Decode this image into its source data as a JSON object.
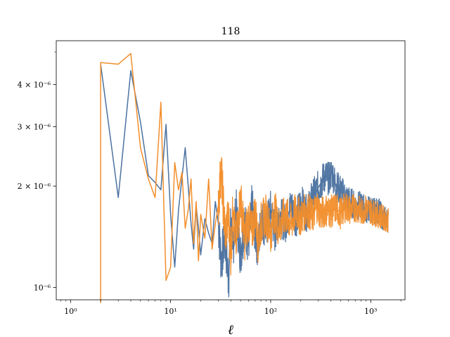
{
  "chart_data": {
    "type": "line",
    "title": "118",
    "xlabel": "ℓ",
    "ylabel": "",
    "xscale": "log",
    "yscale": "log",
    "xlim": [
      0.72,
      2200
    ],
    "ylim": [
      9.2e-07,
      5.4e-06
    ],
    "grid": false,
    "legend": "none",
    "x_ticks": [
      {
        "value": 1,
        "label": "10⁰"
      },
      {
        "value": 10,
        "label": "10¹"
      },
      {
        "value": 100,
        "label": "10²"
      },
      {
        "value": 1000,
        "label": "10³"
      }
    ],
    "y_ticks": [
      {
        "value": 1e-06,
        "label": "10⁻⁶"
      },
      {
        "value": 2e-06,
        "label": "2 × 10⁻⁶"
      },
      {
        "value": 3e-06,
        "label": "3 × 10⁻⁶"
      },
      {
        "value": 4e-06,
        "label": "4 × 10⁻⁶"
      }
    ],
    "series": [
      {
        "color": "#4c72a0",
        "points": [
          [
            2,
            4.6e-06
          ],
          [
            3,
            1.85e-06
          ],
          [
            4,
            4.4e-06
          ],
          [
            5,
            3.1e-06
          ],
          [
            6,
            2.15e-06
          ],
          [
            7,
            2.05e-06
          ],
          [
            8,
            1.95e-06
          ],
          [
            9,
            3.05e-06
          ],
          [
            10,
            1.65e-06
          ],
          [
            11,
            1.15e-06
          ],
          [
            12,
            1.7e-06
          ],
          [
            14,
            2.6e-06
          ],
          [
            15,
            2e-06
          ],
          [
            16,
            1.55e-06
          ],
          [
            17,
            1.3e-06
          ],
          [
            18,
            1.75e-06
          ],
          [
            19,
            1.5e-06
          ],
          [
            20,
            1.25e-06
          ],
          [
            22,
            1.6e-06
          ],
          [
            24,
            1.45e-06
          ],
          [
            26,
            1.35e-06
          ],
          [
            28,
            1.8e-06
          ],
          [
            30,
            1.55e-06
          ],
          [
            32,
            1.2e-06
          ],
          [
            35,
            1.4e-06
          ],
          [
            38,
            1.05e-06
          ],
          [
            40,
            1.6e-06
          ],
          [
            42,
            1.3e-06
          ],
          [
            45,
            1.7e-06
          ],
          [
            50,
            1.25e-06
          ],
          [
            55,
            1.55e-06
          ],
          [
            60,
            1.35e-06
          ],
          [
            65,
            1.75e-06
          ],
          [
            70,
            1.45e-06
          ],
          [
            75,
            1.3e-06
          ],
          [
            80,
            1.6e-06
          ],
          [
            90,
            1.5e-06
          ],
          [
            100,
            1.7e-06
          ],
          [
            110,
            1.45e-06
          ],
          [
            120,
            1.65e-06
          ],
          [
            140,
            1.55e-06
          ],
          [
            160,
            1.75e-06
          ],
          [
            180,
            1.6e-06
          ],
          [
            200,
            1.8e-06
          ],
          [
            230,
            1.65e-06
          ],
          [
            260,
            1.85e-06
          ],
          [
            290,
            1.95e-06
          ],
          [
            320,
            2.05e-06
          ],
          [
            350,
            2.15e-06
          ],
          [
            380,
            2.1e-06
          ],
          [
            410,
            2.2e-06
          ],
          [
            450,
            2e-06
          ],
          [
            500,
            1.95e-06
          ],
          [
            560,
            1.85e-06
          ],
          [
            620,
            1.8e-06
          ],
          [
            700,
            1.75e-06
          ],
          [
            800,
            1.75e-06
          ],
          [
            900,
            1.7e-06
          ],
          [
            1000,
            1.72e-06
          ],
          [
            1100,
            1.68e-06
          ],
          [
            1200,
            1.7e-06
          ],
          [
            1300,
            1.62e-06
          ],
          [
            1400,
            1.6e-06
          ],
          [
            1500,
            1.58e-06
          ]
        ]
      },
      {
        "color": "#f28e2b",
        "points": [
          [
            2,
            9e-07
          ],
          [
            2,
            4.65e-06
          ],
          [
            3,
            4.6e-06
          ],
          [
            4,
            4.95e-06
          ],
          [
            5,
            2.6e-06
          ],
          [
            6,
            2.1e-06
          ],
          [
            7,
            1.85e-06
          ],
          [
            8,
            3.55e-06
          ],
          [
            9,
            1.05e-06
          ],
          [
            10,
            1.15e-06
          ],
          [
            11,
            2.35e-06
          ],
          [
            12,
            1.95e-06
          ],
          [
            13,
            2.2e-06
          ],
          [
            14,
            1.5e-06
          ],
          [
            15,
            1.7e-06
          ],
          [
            16,
            2.1e-06
          ],
          [
            17,
            1.35e-06
          ],
          [
            18,
            1.8e-06
          ],
          [
            19,
            1.2e-06
          ],
          [
            20,
            1.65e-06
          ],
          [
            22,
            1.4e-06
          ],
          [
            24,
            2.1e-06
          ],
          [
            26,
            1.3e-06
          ],
          [
            28,
            1.55e-06
          ],
          [
            30,
            1.75e-06
          ],
          [
            32,
            2.25e-06
          ],
          [
            35,
            1.45e-06
          ],
          [
            38,
            1.6e-06
          ],
          [
            40,
            1.25e-06
          ],
          [
            42,
            1.7e-06
          ],
          [
            45,
            1.35e-06
          ],
          [
            50,
            1.85e-06
          ],
          [
            55,
            1.4e-06
          ],
          [
            60,
            1.6e-06
          ],
          [
            65,
            1.45e-06
          ],
          [
            70,
            1.7e-06
          ],
          [
            75,
            1.35e-06
          ],
          [
            80,
            1.55e-06
          ],
          [
            90,
            1.65e-06
          ],
          [
            100,
            1.45e-06
          ],
          [
            110,
            1.7e-06
          ],
          [
            120,
            1.5e-06
          ],
          [
            140,
            1.65e-06
          ],
          [
            160,
            1.55e-06
          ],
          [
            180,
            1.7e-06
          ],
          [
            200,
            1.6e-06
          ],
          [
            230,
            1.72e-06
          ],
          [
            260,
            1.62e-06
          ],
          [
            290,
            1.75e-06
          ],
          [
            320,
            1.65e-06
          ],
          [
            350,
            1.7e-06
          ],
          [
            400,
            1.68e-06
          ],
          [
            450,
            1.72e-06
          ],
          [
            500,
            1.66e-06
          ],
          [
            560,
            1.74e-06
          ],
          [
            620,
            1.7e-06
          ],
          [
            700,
            1.73e-06
          ],
          [
            800,
            1.68e-06
          ],
          [
            900,
            1.72e-06
          ],
          [
            1000,
            1.69e-06
          ],
          [
            1100,
            1.66e-06
          ],
          [
            1200,
            1.64e-06
          ],
          [
            1300,
            1.62e-06
          ],
          [
            1400,
            1.6e-06
          ],
          [
            1500,
            1.58e-06
          ]
        ]
      }
    ]
  }
}
